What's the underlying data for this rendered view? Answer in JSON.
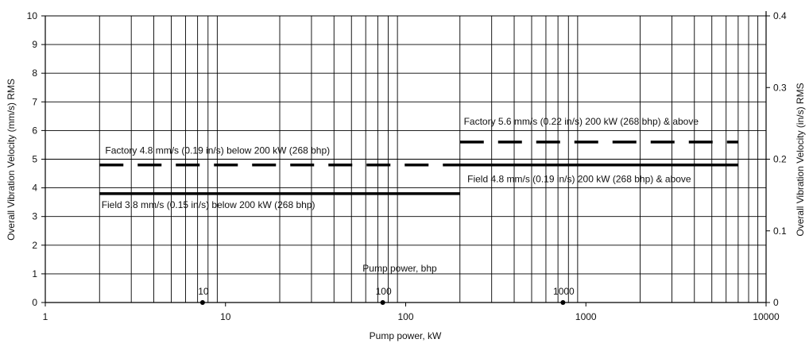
{
  "chart_data": {
    "type": "line",
    "title": "",
    "xlabel": "Pump power, kW",
    "xscale": "log",
    "xlim": [
      1,
      10000
    ],
    "x_ticks": [
      {
        "value": 1,
        "label": "1"
      },
      {
        "value": 10,
        "label": "10"
      },
      {
        "value": 100,
        "label": "100"
      },
      {
        "value": 1000,
        "label": "1000"
      },
      {
        "value": 10000,
        "label": "10000"
      }
    ],
    "ylabel_left": "Overall Vibration Velocity (mm/s) RMS",
    "ylim_left": [
      0,
      10
    ],
    "y_ticks_left": [
      0,
      1,
      2,
      3,
      4,
      5,
      6,
      7,
      8,
      9,
      10
    ],
    "ylabel_right": "Overall Vibration Velocity (in/s) RMS",
    "ylim_right": [
      0,
      0.4
    ],
    "y_ticks_right": [
      {
        "value": 0,
        "label": "0"
      },
      {
        "value": 0.1,
        "label": "0.1"
      },
      {
        "value": 0.2,
        "label": "0.2"
      },
      {
        "value": 0.3,
        "label": "0.3"
      },
      {
        "value": 0.4,
        "label": "0.4"
      }
    ],
    "secondary_x_axis": {
      "label": "Pump power, bhp",
      "ticks": [
        {
          "bhp": 10,
          "kw": 7.46,
          "label": "10"
        },
        {
          "bhp": 100,
          "kw": 74.6,
          "label": "100"
        },
        {
          "bhp": 1000,
          "kw": 746,
          "label": "1000"
        }
      ]
    },
    "grid": true,
    "series": [
      {
        "x": [
          2,
          200
        ],
        "y": [
          4.8,
          4.8
        ],
        "style": "dashed"
      },
      {
        "x": [
          200,
          7000
        ],
        "y": [
          4.8,
          4.8
        ],
        "style": "solid"
      },
      {
        "x": [
          2,
          200
        ],
        "y": [
          3.8,
          3.8
        ],
        "style": "solid"
      },
      {
        "x": [
          200,
          7000
        ],
        "y": [
          5.6,
          5.6
        ],
        "style": "dashed"
      }
    ],
    "annotations": [
      {
        "text": "Factory 4.8 mm/s (0.19 in/s) below 200 kW (268 bhp)",
        "x": 2.15,
        "y": 5.2
      },
      {
        "text": "Field 3.8 mm/s (0.15 in/s) below 200 kW (268 bhp)",
        "x": 2.05,
        "y": 3.3
      },
      {
        "text": "Factory 5.6 mm/s (0.22 in/s) 200 kW (268 bhp) & above",
        "x": 210,
        "y": 6.2
      },
      {
        "text": "Field 4.8 mm/s (0.19 in/s) 200 kW (268 bhp) & above",
        "x": 220,
        "y": 4.2
      }
    ]
  }
}
